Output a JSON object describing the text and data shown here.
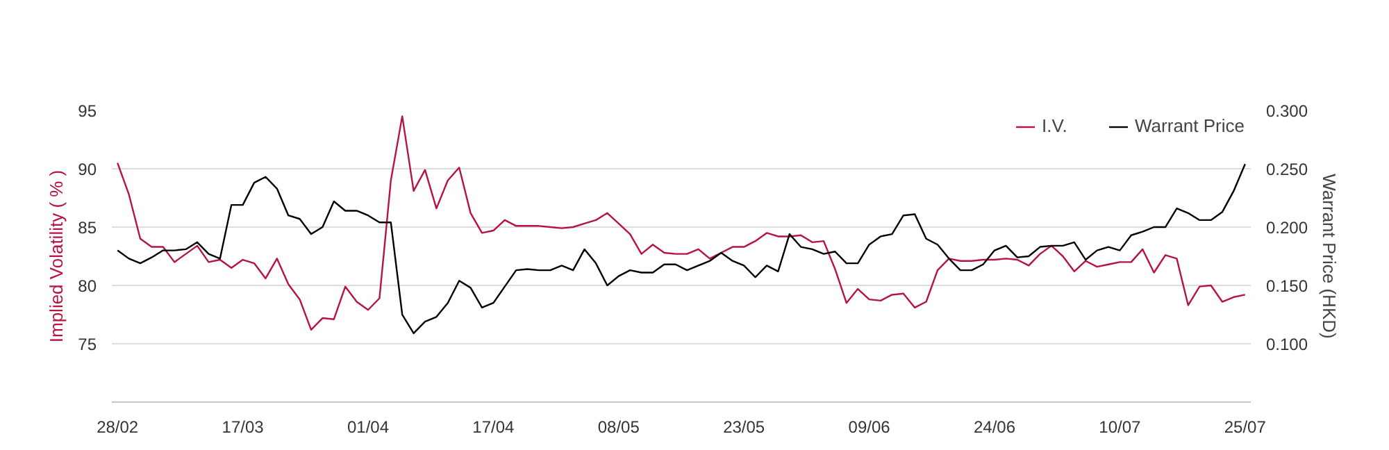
{
  "chart_data": {
    "type": "line",
    "categories": [
      "28/02",
      null,
      null,
      null,
      null,
      null,
      null,
      null,
      null,
      null,
      null,
      "17/03",
      null,
      null,
      null,
      null,
      null,
      null,
      null,
      null,
      null,
      null,
      "01/04",
      null,
      null,
      null,
      null,
      null,
      null,
      null,
      null,
      null,
      null,
      "17/04",
      null,
      null,
      null,
      null,
      null,
      null,
      null,
      null,
      null,
      null,
      "08/05",
      null,
      null,
      null,
      null,
      null,
      null,
      null,
      null,
      null,
      null,
      "23/05",
      null,
      null,
      null,
      null,
      null,
      null,
      null,
      null,
      null,
      null,
      "09/06",
      null,
      null,
      null,
      null,
      null,
      null,
      null,
      null,
      null,
      null,
      "24/06",
      null,
      null,
      null,
      null,
      null,
      null,
      null,
      null,
      null,
      null,
      "10/07",
      null,
      null,
      null,
      null,
      null,
      null,
      null,
      null,
      null,
      null,
      "25/07"
    ],
    "ylabel": "Implied Volatility ( % )",
    "y2label": "Warrant Price (HKD)",
    "ylim": [
      70,
      95
    ],
    "yticks": [
      75,
      80,
      85,
      90,
      95
    ],
    "y2lim": [
      0.05,
      0.3
    ],
    "y2ticks": [
      {
        "value": 0.1,
        "label": "0.100"
      },
      {
        "value": 0.15,
        "label": "0.150"
      },
      {
        "value": 0.2,
        "label": "0.200"
      },
      {
        "value": 0.25,
        "label": "0.250"
      },
      {
        "value": 0.3,
        "label": "0.300"
      }
    ],
    "grid": "y",
    "legend": "top right",
    "marker": "none",
    "line_style": "solid",
    "series": [
      {
        "name": "I.V.",
        "color": "#b7133f",
        "values": [
          90.5,
          87.8,
          84.0,
          83.3,
          83.3,
          82.0,
          82.7,
          83.4,
          82.0,
          82.2,
          81.5,
          82.2,
          81.9,
          80.6,
          82.3,
          80.1,
          78.8,
          76.2,
          77.2,
          77.1,
          79.9,
          78.6,
          77.9,
          78.9,
          89.0,
          94.5,
          88.1,
          89.9,
          86.6,
          89.0,
          90.1,
          86.2,
          84.5,
          84.7,
          85.6,
          85.1,
          85.1,
          85.1,
          85.0,
          84.9,
          85.0,
          85.3,
          85.6,
          86.2,
          85.3,
          84.4,
          82.7,
          83.5,
          82.8,
          82.7,
          82.7,
          83.1,
          82.3,
          82.8,
          83.3,
          83.3,
          83.8,
          84.5,
          84.2,
          84.2,
          84.3,
          83.7,
          83.8,
          81.4,
          78.5,
          79.7,
          78.8,
          78.7,
          79.2,
          79.3,
          78.1,
          78.6,
          81.3,
          82.3,
          82.1,
          82.1,
          82.2,
          82.2,
          82.3,
          82.2,
          81.7,
          82.7,
          83.4,
          82.5,
          81.2,
          82.1,
          81.6,
          81.8,
          82.0,
          82.0,
          83.1,
          81.1,
          82.6,
          82.3,
          78.3,
          79.9,
          80.0,
          78.6,
          79.0,
          79.2
        ]
      },
      {
        "name": "Warrant Price",
        "color": "#000000",
        "axis": "y2",
        "values": [
          0.18,
          0.173,
          0.169,
          0.174,
          0.18,
          0.18,
          0.181,
          0.187,
          0.177,
          0.173,
          0.219,
          0.219,
          0.238,
          0.243,
          0.233,
          0.21,
          0.207,
          0.194,
          0.2,
          0.222,
          0.214,
          0.214,
          0.21,
          0.204,
          0.204,
          0.125,
          0.109,
          0.119,
          0.123,
          0.135,
          0.154,
          0.148,
          0.131,
          0.135,
          0.149,
          0.163,
          0.164,
          0.163,
          0.163,
          0.167,
          0.163,
          0.181,
          0.169,
          0.15,
          0.158,
          0.163,
          0.161,
          0.161,
          0.168,
          0.168,
          0.163,
          0.167,
          0.171,
          0.178,
          0.171,
          0.167,
          0.157,
          0.167,
          0.162,
          0.194,
          0.183,
          0.181,
          0.177,
          0.179,
          0.169,
          0.169,
          0.185,
          0.192,
          0.194,
          0.21,
          0.211,
          0.19,
          0.185,
          0.173,
          0.163,
          0.163,
          0.168,
          0.18,
          0.184,
          0.174,
          0.175,
          0.183,
          0.184,
          0.184,
          0.187,
          0.172,
          0.18,
          0.183,
          0.18,
          0.193,
          0.196,
          0.2,
          0.2,
          0.216,
          0.212,
          0.206,
          0.206,
          0.213,
          0.231,
          0.254
        ]
      }
    ]
  }
}
